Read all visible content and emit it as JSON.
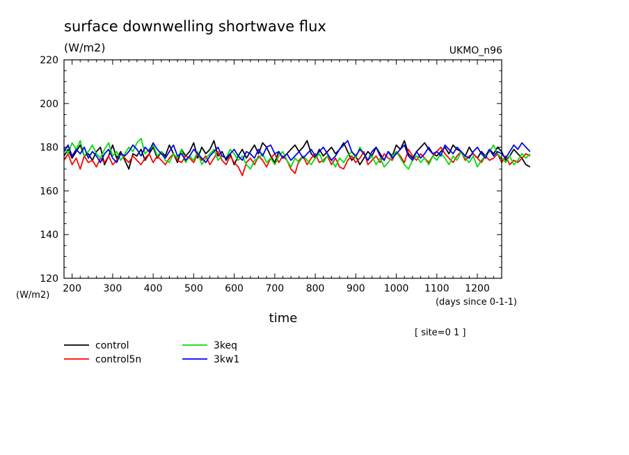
{
  "chart_data": {
    "type": "line",
    "title": "surface downwelling shortwave flux",
    "units": "(W/m2)",
    "model": "UKMO_n96",
    "ylabel": "(W/m2)",
    "xlabel": "time",
    "x_units": "(days since 0-1-1)",
    "site_note": "[ site=0 1 ]",
    "xlim": [
      180,
      1260
    ],
    "ylim": [
      120,
      220
    ],
    "x_ticks": [
      200,
      300,
      400,
      500,
      600,
      700,
      800,
      900,
      1000,
      1100,
      1200
    ],
    "y_ticks": [
      120,
      140,
      160,
      180,
      200,
      220
    ],
    "x_step": 10,
    "grid": false,
    "legend_position": "bottom-left",
    "series": [
      {
        "name": "control",
        "color": "#000000",
        "values": [
          176,
          179,
          175,
          178,
          181,
          176,
          177,
          174,
          178,
          180,
          172,
          176,
          181,
          175,
          178,
          174,
          170,
          177,
          176,
          179,
          174,
          177,
          180,
          175,
          178,
          176,
          181,
          177,
          173,
          179,
          176,
          178,
          182,
          175,
          180,
          177,
          179,
          183,
          176,
          178,
          174,
          177,
          172,
          176,
          179,
          175,
          178,
          181,
          177,
          182,
          180,
          176,
          173,
          178,
          175,
          177,
          179,
          181,
          178,
          180,
          183,
          177,
          175,
          179,
          176,
          178,
          180,
          177,
          179,
          182,
          178,
          174,
          176,
          172,
          175,
          178,
          176,
          180,
          177,
          174,
          178,
          176,
          181,
          179,
          183,
          177,
          175,
          178,
          180,
          182,
          179,
          177,
          176,
          178,
          180,
          177,
          181,
          179,
          178,
          176,
          180,
          177,
          175,
          178,
          176,
          179,
          177,
          180,
          178,
          174,
          176,
          179,
          177,
          175,
          172,
          171
        ]
      },
      {
        "name": "control5n",
        "color": "#ff0000",
        "values": [
          174,
          177,
          172,
          175,
          170,
          176,
          173,
          174,
          171,
          175,
          173,
          176,
          172,
          174,
          177,
          175,
          173,
          176,
          174,
          172,
          175,
          177,
          173,
          176,
          174,
          172,
          175,
          177,
          174,
          173,
          176,
          175,
          173,
          177,
          174,
          176,
          172,
          175,
          178,
          174,
          172,
          176,
          173,
          171,
          167,
          173,
          175,
          172,
          176,
          174,
          171,
          175,
          177,
          173,
          176,
          174,
          170,
          168,
          174,
          176,
          172,
          175,
          177,
          173,
          174,
          176,
          172,
          175,
          171,
          170,
          174,
          176,
          173,
          175,
          178,
          172,
          174,
          176,
          173,
          177,
          175,
          174,
          178,
          176,
          173,
          179,
          176,
          174,
          177,
          175,
          173,
          176,
          178,
          180,
          177,
          175,
          173,
          176,
          178,
          174,
          176,
          177,
          175,
          173,
          176,
          174,
          175,
          177,
          173,
          176,
          172,
          174,
          173,
          175,
          177,
          176
        ]
      },
      {
        "name": "3keq",
        "color": "#00dd00",
        "values": [
          180,
          177,
          182,
          179,
          183,
          176,
          178,
          181,
          177,
          175,
          179,
          182,
          176,
          178,
          174,
          177,
          180,
          178,
          182,
          184,
          177,
          179,
          181,
          176,
          178,
          174,
          173,
          177,
          175,
          179,
          173,
          176,
          174,
          178,
          172,
          175,
          177,
          179,
          174,
          176,
          175,
          179,
          177,
          174,
          176,
          172,
          170,
          174,
          175,
          177,
          173,
          175,
          172,
          176,
          178,
          174,
          171,
          175,
          173,
          176,
          174,
          172,
          175,
          177,
          173,
          176,
          174,
          171,
          175,
          173,
          176,
          178,
          175,
          180,
          177,
          174,
          176,
          172,
          175,
          171,
          173,
          176,
          178,
          175,
          172,
          170,
          174,
          176,
          173,
          175,
          172,
          176,
          174,
          177,
          175,
          172,
          176,
          174,
          178,
          175,
          173,
          176,
          171,
          174,
          176,
          178,
          181,
          177,
          175,
          173,
          176,
          172,
          174,
          177,
          175,
          177
        ]
      },
      {
        "name": "3kw1",
        "color": "#0000ee",
        "values": [
          178,
          181,
          176,
          179,
          177,
          180,
          175,
          178,
          176,
          173,
          177,
          179,
          175,
          173,
          177,
          176,
          178,
          181,
          179,
          176,
          180,
          178,
          182,
          179,
          177,
          175,
          178,
          181,
          176,
          177,
          174,
          176,
          179,
          177,
          175,
          173,
          176,
          178,
          180,
          176,
          175,
          177,
          179,
          176,
          174,
          178,
          177,
          175,
          179,
          176,
          180,
          181,
          177,
          178,
          175,
          177,
          174,
          176,
          178,
          175,
          177,
          179,
          176,
          178,
          180,
          177,
          174,
          176,
          179,
          181,
          183,
          178,
          176,
          179,
          177,
          174,
          178,
          180,
          176,
          174,
          178,
          175,
          177,
          179,
          181,
          176,
          174,
          178,
          175,
          177,
          180,
          177,
          178,
          176,
          181,
          179,
          177,
          180,
          178,
          176,
          175,
          178,
          180,
          177,
          175,
          179,
          176,
          178,
          177,
          175,
          178,
          181,
          179,
          182,
          180,
          178
        ]
      }
    ]
  }
}
